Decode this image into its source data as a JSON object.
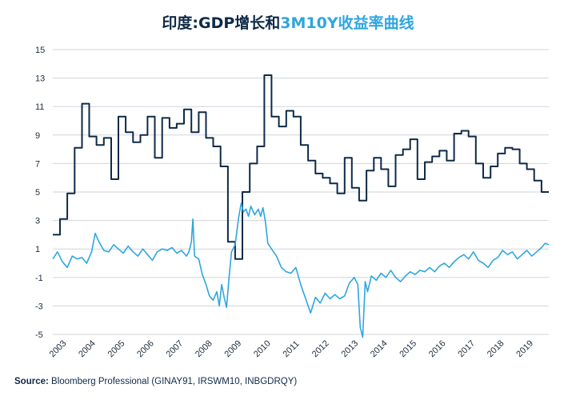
{
  "title": {
    "part1": "印度:GDP增长和",
    "part2": "3M10Y收益率曲线"
  },
  "source": {
    "label": "Source:",
    "text": "Bloomberg Professional  (GINAY91, IRSWM10, INBGDRQY)"
  },
  "colors": {
    "gdp_series": "#0e2a47",
    "curve_series": "#2fa6df",
    "title_accent": "#2fa6df",
    "grid": "#cfd4da"
  },
  "chart_data": {
    "type": "line",
    "title": "印度:GDP增长和3M10Y收益率曲线",
    "xlabel": "",
    "ylabel": "",
    "ylim": [
      -5,
      15
    ],
    "yticks": [
      15,
      13,
      11,
      9,
      7,
      5,
      3,
      1,
      -1,
      -3,
      -5
    ],
    "xticks": [
      "2003",
      "2004",
      "2005",
      "2006",
      "2007",
      "2008",
      "2009",
      "2010",
      "2011",
      "2012",
      "2013",
      "2014",
      "2015",
      "2016",
      "2017",
      "2018",
      "2019"
    ],
    "xlim": [
      "2003-01-01",
      "2019-12-31"
    ],
    "grid": "horizontal",
    "legend": "none",
    "series": [
      {
        "style": "step",
        "color": "#0e2a47",
        "points": [
          [
            "2003-01-01",
            2.0
          ],
          [
            "2003-04-01",
            3.1
          ],
          [
            "2003-07-01",
            4.9
          ],
          [
            "2003-10-01",
            8.1
          ],
          [
            "2004-01-01",
            11.2
          ],
          [
            "2004-04-01",
            8.9
          ],
          [
            "2004-07-01",
            8.3
          ],
          [
            "2004-10-01",
            8.8
          ],
          [
            "2005-01-01",
            5.9
          ],
          [
            "2005-04-01",
            10.3
          ],
          [
            "2005-07-01",
            9.2
          ],
          [
            "2005-10-01",
            8.5
          ],
          [
            "2006-01-01",
            9.0
          ],
          [
            "2006-04-01",
            10.3
          ],
          [
            "2006-07-01",
            7.4
          ],
          [
            "2006-10-01",
            10.2
          ],
          [
            "2007-01-01",
            9.5
          ],
          [
            "2007-04-01",
            9.8
          ],
          [
            "2007-07-01",
            10.8
          ],
          [
            "2007-10-01",
            9.2
          ],
          [
            "2008-01-01",
            10.6
          ],
          [
            "2008-04-01",
            8.8
          ],
          [
            "2008-07-01",
            8.2
          ],
          [
            "2008-10-01",
            6.8
          ],
          [
            "2009-01-01",
            1.5
          ],
          [
            "2009-04-01",
            0.3
          ],
          [
            "2009-07-01",
            5.0
          ],
          [
            "2009-10-01",
            7.0
          ],
          [
            "2010-01-01",
            8.2
          ],
          [
            "2010-04-01",
            13.2
          ],
          [
            "2010-07-01",
            10.3
          ],
          [
            "2010-10-01",
            9.6
          ],
          [
            "2011-01-01",
            10.7
          ],
          [
            "2011-04-01",
            10.3
          ],
          [
            "2011-07-01",
            8.3
          ],
          [
            "2011-10-01",
            7.2
          ],
          [
            "2012-01-01",
            6.3
          ],
          [
            "2012-04-01",
            6.0
          ],
          [
            "2012-07-01",
            5.6
          ],
          [
            "2012-10-01",
            4.9
          ],
          [
            "2013-01-01",
            7.4
          ],
          [
            "2013-04-01",
            5.3
          ],
          [
            "2013-07-01",
            4.4
          ],
          [
            "2013-10-01",
            6.5
          ],
          [
            "2014-01-01",
            7.4
          ],
          [
            "2014-04-01",
            6.6
          ],
          [
            "2014-07-01",
            5.4
          ],
          [
            "2014-10-01",
            7.6
          ],
          [
            "2015-01-01",
            8.0
          ],
          [
            "2015-04-01",
            8.7
          ],
          [
            "2015-07-01",
            5.9
          ],
          [
            "2015-10-01",
            7.1
          ],
          [
            "2016-01-01",
            7.5
          ],
          [
            "2016-04-01",
            7.9
          ],
          [
            "2016-07-01",
            7.2
          ],
          [
            "2016-10-01",
            9.1
          ],
          [
            "2017-01-01",
            9.3
          ],
          [
            "2017-04-01",
            8.9
          ],
          [
            "2017-07-01",
            7.0
          ],
          [
            "2017-10-01",
            6.0
          ],
          [
            "2018-01-01",
            6.8
          ],
          [
            "2018-04-01",
            7.7
          ],
          [
            "2018-07-01",
            8.1
          ],
          [
            "2018-10-01",
            8.0
          ],
          [
            "2019-01-01",
            7.0
          ],
          [
            "2019-04-01",
            6.6
          ],
          [
            "2019-07-01",
            5.8
          ],
          [
            "2019-10-01",
            5.0
          ],
          [
            "2019-12-31",
            5.0
          ]
        ]
      },
      {
        "style": "line",
        "color": "#2fa6df",
        "points": [
          [
            "2003-01-01",
            0.3
          ],
          [
            "2003-03-01",
            0.8
          ],
          [
            "2003-05-01",
            0.1
          ],
          [
            "2003-07-01",
            -0.3
          ],
          [
            "2003-09-01",
            0.5
          ],
          [
            "2003-11-01",
            0.3
          ],
          [
            "2004-01-01",
            0.4
          ],
          [
            "2004-03-01",
            0.0
          ],
          [
            "2004-05-01",
            0.8
          ],
          [
            "2004-06-15",
            2.1
          ],
          [
            "2004-08-01",
            1.5
          ],
          [
            "2004-10-01",
            0.9
          ],
          [
            "2004-12-01",
            0.8
          ],
          [
            "2005-02-01",
            1.3
          ],
          [
            "2005-04-01",
            1.0
          ],
          [
            "2005-06-01",
            0.7
          ],
          [
            "2005-08-01",
            1.2
          ],
          [
            "2005-10-01",
            0.8
          ],
          [
            "2005-12-01",
            0.5
          ],
          [
            "2006-02-01",
            1.0
          ],
          [
            "2006-04-01",
            0.6
          ],
          [
            "2006-06-01",
            0.2
          ],
          [
            "2006-08-01",
            0.8
          ],
          [
            "2006-10-01",
            1.0
          ],
          [
            "2006-12-01",
            0.9
          ],
          [
            "2007-02-01",
            1.1
          ],
          [
            "2007-04-01",
            0.7
          ],
          [
            "2007-06-01",
            0.9
          ],
          [
            "2007-08-01",
            0.5
          ],
          [
            "2007-09-01",
            0.8
          ],
          [
            "2007-10-01",
            1.5
          ],
          [
            "2007-10-20",
            3.1
          ],
          [
            "2007-11-10",
            0.5
          ],
          [
            "2008-01-01",
            0.3
          ],
          [
            "2008-02-15",
            -0.8
          ],
          [
            "2008-04-01",
            -1.5
          ],
          [
            "2008-05-15",
            -2.3
          ],
          [
            "2008-07-01",
            -2.6
          ],
          [
            "2008-08-15",
            -2.0
          ],
          [
            "2008-09-15",
            -3.0
          ],
          [
            "2008-10-15",
            -1.5
          ],
          [
            "2008-11-15",
            -2.4
          ],
          [
            "2008-12-15",
            -3.1
          ],
          [
            "2009-01-15",
            -1.0
          ],
          [
            "2009-02-15",
            0.8
          ],
          [
            "2009-04-01",
            1.3
          ],
          [
            "2009-05-15",
            3.2
          ],
          [
            "2009-06-15",
            4.2
          ],
          [
            "2009-07-15",
            3.6
          ],
          [
            "2009-08-15",
            3.8
          ],
          [
            "2009-09-15",
            3.3
          ],
          [
            "2009-10-15",
            4.0
          ],
          [
            "2009-12-01",
            3.4
          ],
          [
            "2010-01-15",
            3.8
          ],
          [
            "2010-02-15",
            3.3
          ],
          [
            "2010-03-15",
            3.9
          ],
          [
            "2010-04-15",
            2.9
          ],
          [
            "2010-05-15",
            1.4
          ],
          [
            "2010-07-01",
            1.0
          ],
          [
            "2010-09-01",
            0.5
          ],
          [
            "2010-11-01",
            -0.3
          ],
          [
            "2011-01-01",
            -0.6
          ],
          [
            "2011-03-01",
            -0.7
          ],
          [
            "2011-05-01",
            -0.3
          ],
          [
            "2011-07-01",
            -1.5
          ],
          [
            "2011-09-01",
            -2.5
          ],
          [
            "2011-11-01",
            -3.5
          ],
          [
            "2012-01-01",
            -2.4
          ],
          [
            "2012-03-01",
            -2.8
          ],
          [
            "2012-05-01",
            -2.1
          ],
          [
            "2012-07-01",
            -2.5
          ],
          [
            "2012-09-01",
            -2.2
          ],
          [
            "2012-11-01",
            -2.5
          ],
          [
            "2013-01-01",
            -2.3
          ],
          [
            "2013-03-01",
            -1.4
          ],
          [
            "2013-05-01",
            -1.0
          ],
          [
            "2013-06-15",
            -1.5
          ],
          [
            "2013-07-15",
            -4.5
          ],
          [
            "2013-08-15",
            -5.2
          ],
          [
            "2013-09-15",
            -1.3
          ],
          [
            "2013-10-15",
            -2.0
          ],
          [
            "2013-12-01",
            -0.9
          ],
          [
            "2014-02-01",
            -1.2
          ],
          [
            "2014-04-01",
            -0.7
          ],
          [
            "2014-06-01",
            -1.0
          ],
          [
            "2014-08-01",
            -0.5
          ],
          [
            "2014-10-01",
            -1.0
          ],
          [
            "2014-12-01",
            -1.3
          ],
          [
            "2015-02-01",
            -0.9
          ],
          [
            "2015-04-01",
            -0.6
          ],
          [
            "2015-06-01",
            -0.8
          ],
          [
            "2015-08-01",
            -0.5
          ],
          [
            "2015-10-01",
            -0.6
          ],
          [
            "2015-12-01",
            -0.3
          ],
          [
            "2016-02-01",
            -0.6
          ],
          [
            "2016-04-01",
            -0.2
          ],
          [
            "2016-06-01",
            0.0
          ],
          [
            "2016-08-01",
            -0.3
          ],
          [
            "2016-10-01",
            0.1
          ],
          [
            "2016-12-01",
            0.4
          ],
          [
            "2017-02-01",
            0.6
          ],
          [
            "2017-04-01",
            0.3
          ],
          [
            "2017-06-01",
            0.8
          ],
          [
            "2017-08-01",
            0.2
          ],
          [
            "2017-10-01",
            0.0
          ],
          [
            "2017-12-01",
            -0.3
          ],
          [
            "2018-02-01",
            0.2
          ],
          [
            "2018-04-01",
            0.4
          ],
          [
            "2018-06-01",
            0.9
          ],
          [
            "2018-08-01",
            0.6
          ],
          [
            "2018-10-01",
            0.8
          ],
          [
            "2018-12-01",
            0.3
          ],
          [
            "2019-02-01",
            0.6
          ],
          [
            "2019-04-01",
            0.9
          ],
          [
            "2019-06-01",
            0.5
          ],
          [
            "2019-08-01",
            0.8
          ],
          [
            "2019-10-01",
            1.1
          ],
          [
            "2019-11-15",
            1.4
          ],
          [
            "2019-12-31",
            1.3
          ]
        ]
      }
    ]
  }
}
